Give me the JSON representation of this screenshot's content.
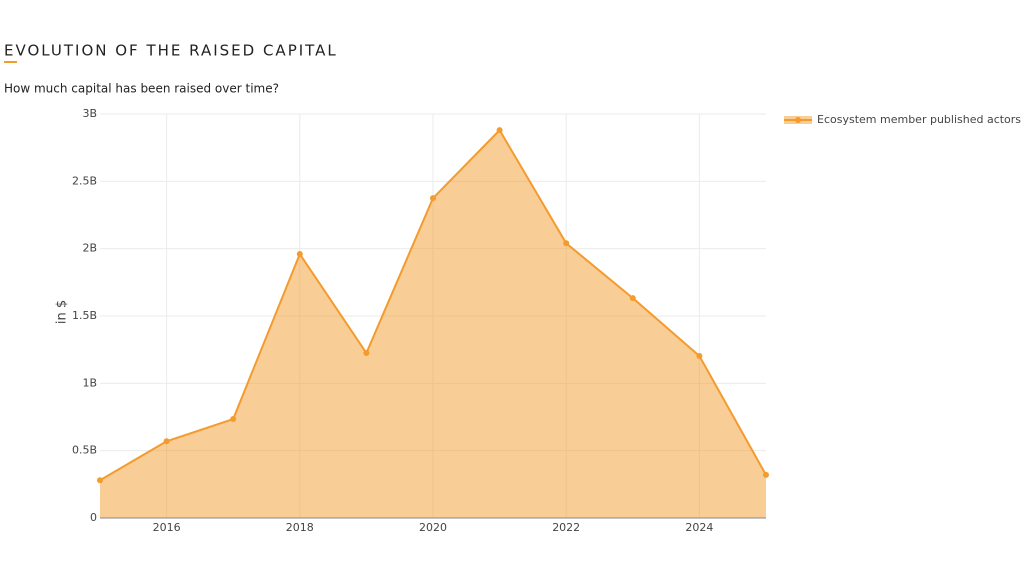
{
  "chart_data": {
    "type": "area",
    "title": "EVOLUTION OF THE RAISED CAPITAL",
    "subtitle": "How much capital has been raised over time?",
    "y_label": "in $",
    "x": [
      2015,
      2016,
      2017,
      2018,
      2019,
      2020,
      2021,
      2022,
      2023,
      2024,
      2025
    ],
    "series": [
      {
        "name": "Ecosystem member published actors",
        "color": "#f49b2e",
        "values": [
          280000000,
          570000000,
          735000000,
          1960000000,
          1225000000,
          2375000000,
          2880000000,
          2040000000,
          1633000000,
          1203000000,
          320000000
        ]
      }
    ],
    "xlim": [
      2015,
      2025
    ],
    "xticks": [
      2016,
      2018,
      2020,
      2022,
      2024
    ],
    "ylim": [
      0,
      3000000000
    ],
    "yticks": [
      0,
      {
        "value": 500000000,
        "label": "0.5B"
      },
      {
        "value": 1000000000,
        "label": "1B"
      },
      {
        "value": 1500000000,
        "label": "1.5B"
      },
      {
        "value": 2000000000,
        "label": "2B"
      },
      {
        "value": 2500000000,
        "label": "2.5B"
      },
      {
        "value": 3000000000,
        "label": "3B"
      }
    ],
    "grid": true,
    "legend": "top-right"
  }
}
